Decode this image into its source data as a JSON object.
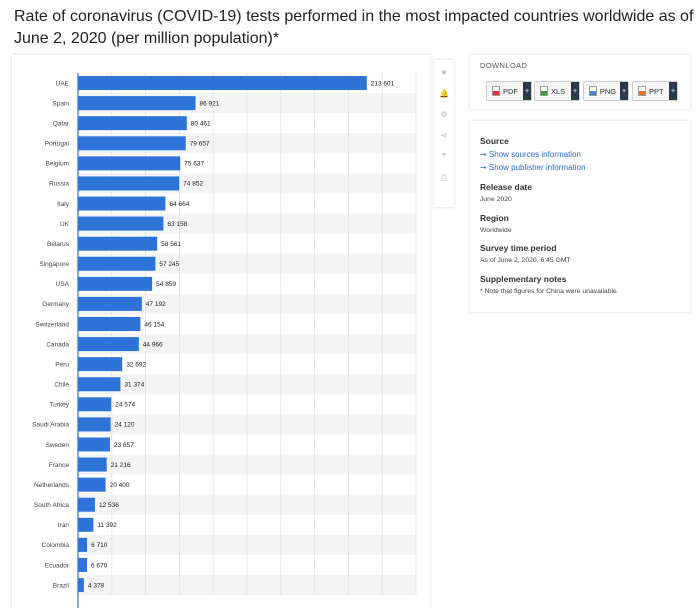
{
  "title": "Rate of coronavirus (COVID-19) tests performed in the most impacted countries worldwide as of June 2, 2020 (per million population)*",
  "colors": {
    "bar": "#2e74d8",
    "panel_shadow": "#cccccc",
    "link": "#2a6ad8"
  },
  "toolbar": {
    "icons": [
      "star-icon",
      "bell-icon",
      "gear-icon",
      "share-icon",
      "quote-icon",
      "print-icon"
    ]
  },
  "download": {
    "title": "DOWNLOAD",
    "buttons": [
      {
        "label": "PDF",
        "icon": "pdf-file-icon",
        "color": "#d9322b"
      },
      {
        "label": "XLS",
        "icon": "xls-file-icon",
        "color": "#3f9a3a"
      },
      {
        "label": "PNG",
        "icon": "png-file-icon",
        "color": "#4a7fd1"
      },
      {
        "label": "PPT",
        "icon": "ppt-file-icon",
        "color": "#e0782a"
      }
    ],
    "plus": "+"
  },
  "info": {
    "source_heading": "Source",
    "show_sources": "➞ Show sources information",
    "show_publisher": "➞ Show publisher information",
    "release_heading": "Release date",
    "release_value": "June 2020",
    "region_heading": "Region",
    "region_value": "Worldwide",
    "survey_heading": "Survey time period",
    "survey_value": "As of June 2, 2020, 6:45 GMT",
    "supp_heading": "Supplementary notes",
    "supp_value": "* Note that figures for China were unavailable."
  },
  "chart_data": {
    "type": "bar",
    "orientation": "horizontal",
    "title": "Rate of coronavirus (COVID-19) tests performed in the most impacted countries worldwide as of June 2, 2020 (per million population)*",
    "categories": [
      "UAE",
      "Spain",
      "Qatar",
      "Portugal",
      "Belgium",
      "Russia",
      "Italy",
      "UK",
      "Belarus",
      "Singapore",
      "USA",
      "Germany",
      "Switzerland",
      "Canada",
      "Peru",
      "Chile",
      "Turkey",
      "Saudi Arabia",
      "Sweden",
      "France",
      "Netherlands",
      "South Africa",
      "Iran",
      "Colombia",
      "Ecuador",
      "Brazil"
    ],
    "values": [
      213601,
      86921,
      80461,
      79657,
      75637,
      74852,
      64664,
      63158,
      58561,
      57245,
      54859,
      47192,
      46154,
      44966,
      32692,
      31374,
      24574,
      24120,
      23657,
      21216,
      20400,
      12536,
      11392,
      6710,
      6670,
      4378
    ],
    "value_labels": [
      "213 601",
      "86 921",
      "80 461",
      "79 657",
      "75 637",
      "74 852",
      "64 664",
      "63 158",
      "58 561",
      "57 245",
      "54 859",
      "47 192",
      "46 154",
      "44 966",
      "32 692",
      "31 374",
      "24 574",
      "24 120",
      "23 657",
      "21 216",
      "20 400",
      "12 536",
      "11 392",
      "6 710",
      "6 670",
      "4 378"
    ],
    "xlim": [
      0,
      250000
    ],
    "gridlines": true,
    "grid_step": 25000,
    "legend": "none",
    "xlabel": "",
    "ylabel": ""
  }
}
